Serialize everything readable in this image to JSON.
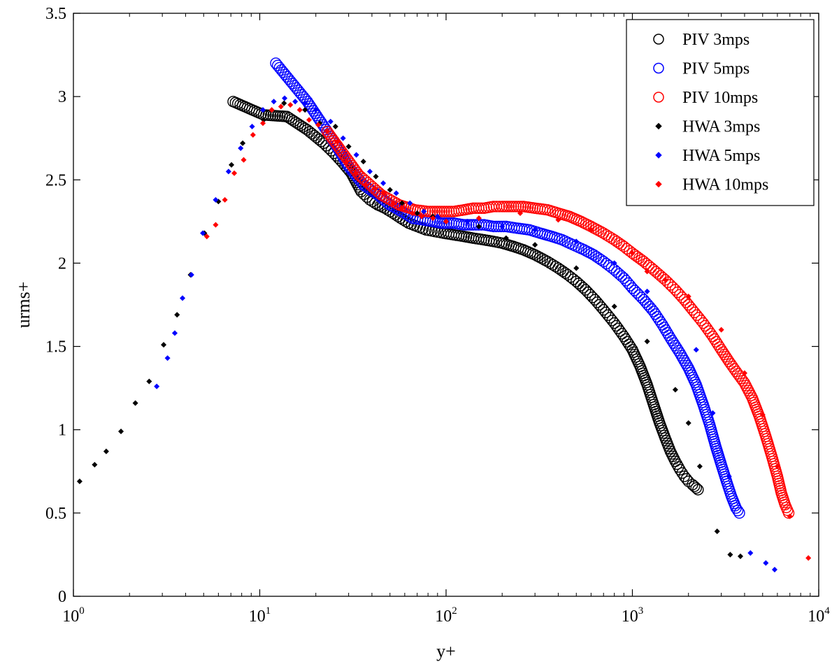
{
  "chart_data": {
    "type": "scatter",
    "xlabel": "y+",
    "ylabel": "urms+",
    "xscale": "log",
    "xlim": [
      1,
      10000
    ],
    "ylim": [
      0,
      3.5
    ],
    "grid": false,
    "legend_position": "top-right",
    "x_ticks": [
      {
        "base": "10",
        "exp": "0",
        "value": 1
      },
      {
        "base": "10",
        "exp": "1",
        "value": 10
      },
      {
        "base": "10",
        "exp": "2",
        "value": 100
      },
      {
        "base": "10",
        "exp": "3",
        "value": 1000
      },
      {
        "base": "10",
        "exp": "4",
        "value": 10000
      }
    ],
    "y_ticks": [
      "0",
      "0.5",
      "1",
      "1.5",
      "2",
      "2.5",
      "3",
      "3.5"
    ],
    "series": [
      {
        "name": "PIV 3mps",
        "marker": "circle",
        "color": "#000000",
        "x": [
          7.2,
          10.5,
          14.0,
          18.0,
          22.0,
          25.0,
          28.0,
          31.0,
          35.0,
          39.0,
          43.0,
          47.0,
          52.0,
          57.0,
          63.0,
          70.0,
          78.0,
          87.0,
          97.0,
          110.0,
          125.0,
          140.0,
          160.0,
          180.0,
          200.0,
          230.0,
          260.0,
          300.0,
          350.0,
          400.0,
          450.0,
          500.0,
          560.0,
          630.0,
          700.0,
          800.0,
          900.0,
          1000.0,
          1100.0,
          1200.0,
          1300.0,
          1400.0,
          1500.0,
          1600.0,
          1700.0,
          1800.0,
          1900.0,
          2000.0,
          2100.0,
          2150.0,
          2200.0,
          2250.0
        ],
        "y": [
          2.97,
          2.89,
          2.88,
          2.8,
          2.72,
          2.66,
          2.6,
          2.54,
          2.43,
          2.38,
          2.35,
          2.33,
          2.3,
          2.27,
          2.24,
          2.22,
          2.2,
          2.19,
          2.18,
          2.17,
          2.16,
          2.15,
          2.14,
          2.13,
          2.12,
          2.1,
          2.08,
          2.05,
          2.01,
          1.97,
          1.93,
          1.89,
          1.84,
          1.78,
          1.72,
          1.64,
          1.56,
          1.48,
          1.38,
          1.27,
          1.15,
          1.04,
          0.95,
          0.87,
          0.81,
          0.76,
          0.72,
          0.69,
          0.67,
          0.66,
          0.65,
          0.64
        ]
      },
      {
        "name": "PIV 5mps",
        "marker": "circle",
        "color": "#0000ff",
        "x": [
          12.2,
          18.0,
          24.0,
          30.0,
          36.0,
          43.0,
          50.0,
          58.0,
          66.0,
          75.0,
          85.0,
          95.0,
          110.0,
          125.0,
          140.0,
          160.0,
          180.0,
          210.0,
          240.0,
          280.0,
          320.0,
          370.0,
          420.0,
          480.0,
          550.0,
          620.0,
          700.0,
          800.0,
          900.0,
          1000.0,
          1150.0,
          1300.0,
          1450.0,
          1600.0,
          1800.0,
          2000.0,
          2200.0,
          2400.0,
          2600.0,
          2800.0,
          3000.0,
          3200.0,
          3400.0,
          3600.0,
          3750.0
        ],
        "y": [
          3.2,
          2.97,
          2.76,
          2.58,
          2.47,
          2.41,
          2.35,
          2.31,
          2.27,
          2.26,
          2.25,
          2.24,
          2.24,
          2.23,
          2.23,
          2.23,
          2.22,
          2.22,
          2.21,
          2.2,
          2.18,
          2.16,
          2.14,
          2.11,
          2.08,
          2.05,
          2.01,
          1.96,
          1.91,
          1.85,
          1.78,
          1.71,
          1.63,
          1.55,
          1.46,
          1.37,
          1.27,
          1.15,
          1.03,
          0.9,
          0.79,
          0.69,
          0.6,
          0.53,
          0.5
        ]
      },
      {
        "name": "PIV 10mps",
        "marker": "circle",
        "color": "#ff0000",
        "x": [
          23.0,
          34.0,
          45.0,
          56.0,
          68.0,
          80.0,
          95.0,
          110.0,
          125.0,
          140.0,
          160.0,
          180.0,
          200.0,
          230.0,
          260.0,
          300.0,
          350.0,
          400.0,
          460.0,
          530.0,
          600.0,
          700.0,
          800.0,
          900.0,
          1000.0,
          1150.0,
          1300.0,
          1500.0,
          1700.0,
          1900.0,
          2100.0,
          2400.0,
          2700.0,
          3000.0,
          3300.0,
          3600.0,
          4000.0,
          4400.0,
          4800.0,
          5200.0,
          5600.0,
          6000.0,
          6300.0,
          6600.0,
          6900.0
        ],
        "y": [
          2.79,
          2.53,
          2.41,
          2.35,
          2.32,
          2.31,
          2.31,
          2.31,
          2.32,
          2.33,
          2.33,
          2.34,
          2.34,
          2.34,
          2.34,
          2.33,
          2.32,
          2.3,
          2.28,
          2.25,
          2.22,
          2.18,
          2.14,
          2.1,
          2.06,
          2.01,
          1.96,
          1.9,
          1.84,
          1.78,
          1.72,
          1.64,
          1.56,
          1.48,
          1.41,
          1.35,
          1.28,
          1.19,
          1.08,
          0.96,
          0.84,
          0.72,
          0.62,
          0.55,
          0.5
        ]
      },
      {
        "name": "HWA 3mps",
        "marker": "diamond",
        "color": "#000000",
        "x": [
          1.08,
          1.3,
          1.5,
          1.8,
          2.15,
          2.55,
          3.05,
          3.6,
          4.25,
          5.05,
          6.0,
          7.05,
          8.1,
          10.5,
          13.5,
          17.5,
          21.0,
          25.5,
          30.0,
          36.0,
          42.0,
          50.0,
          58.0,
          70.0,
          85.0,
          100.0,
          150.0,
          210.0,
          300.0,
          500.0,
          800.0,
          1200.0,
          1700.0,
          2000.0,
          2300.0,
          2850.0,
          3350.0,
          3800.0
        ],
        "y": [
          0.69,
          0.79,
          0.87,
          0.99,
          1.16,
          1.29,
          1.51,
          1.69,
          1.93,
          2.18,
          2.37,
          2.59,
          2.72,
          2.86,
          2.96,
          2.92,
          2.84,
          2.82,
          2.7,
          2.61,
          2.52,
          2.44,
          2.36,
          2.3,
          2.28,
          2.25,
          2.22,
          2.15,
          2.11,
          1.97,
          1.74,
          1.53,
          1.24,
          1.04,
          0.78,
          0.39,
          0.25,
          0.24
        ]
      },
      {
        "name": "HWA 5mps",
        "marker": "diamond",
        "color": "#0000ff",
        "x": [
          2.8,
          3.2,
          3.5,
          3.85,
          4.3,
          4.95,
          5.8,
          6.8,
          7.9,
          9.1,
          10.4,
          11.9,
          13.6,
          15.5,
          17.5,
          20.0,
          24.0,
          28.0,
          33.0,
          39.0,
          46.0,
          54.0,
          64.0,
          76.0,
          90.0,
          130.0,
          200.0,
          300.0,
          500.0,
          800.0,
          1200.0,
          2200.0,
          2700.0,
          3300.0,
          4300.0,
          5200.0,
          5800.0
        ],
        "y": [
          1.26,
          1.43,
          1.58,
          1.79,
          1.93,
          2.18,
          2.38,
          2.55,
          2.69,
          2.82,
          2.92,
          2.97,
          2.99,
          2.97,
          2.96,
          2.92,
          2.85,
          2.75,
          2.65,
          2.55,
          2.48,
          2.42,
          2.36,
          2.31,
          2.28,
          2.25,
          2.22,
          2.2,
          2.13,
          2.0,
          1.83,
          1.48,
          1.1,
          0.72,
          0.26,
          0.2,
          0.16
        ]
      },
      {
        "name": "HWA 10mps",
        "marker": "diamond",
        "color": "#ff0000",
        "x": [
          5.2,
          5.8,
          6.5,
          7.3,
          8.2,
          9.2,
          10.4,
          11.6,
          13.0,
          14.6,
          16.4,
          18.4,
          20.6,
          23.1,
          26.0,
          29.2,
          32.8,
          36.8,
          41.3,
          46.3,
          52.0,
          58.0,
          66.0,
          74.0,
          85.0,
          100.0,
          150.0,
          250.0,
          400.0,
          600.0,
          1000.0,
          1200.0,
          1500.0,
          2000.0,
          3000.0,
          4000.0,
          5000.0,
          6000.0,
          7000.0,
          8800.0
        ],
        "y": [
          2.16,
          2.23,
          2.38,
          2.54,
          2.62,
          2.77,
          2.84,
          2.92,
          2.94,
          2.95,
          2.92,
          2.86,
          2.83,
          2.79,
          2.73,
          2.61,
          2.54,
          2.47,
          2.45,
          2.42,
          2.36,
          2.33,
          2.3,
          2.28,
          2.27,
          2.25,
          2.27,
          2.3,
          2.26,
          2.2,
          2.06,
          1.95,
          1.9,
          1.8,
          1.6,
          1.34,
          1.09,
          0.78,
          0.48,
          0.23
        ]
      }
    ]
  }
}
